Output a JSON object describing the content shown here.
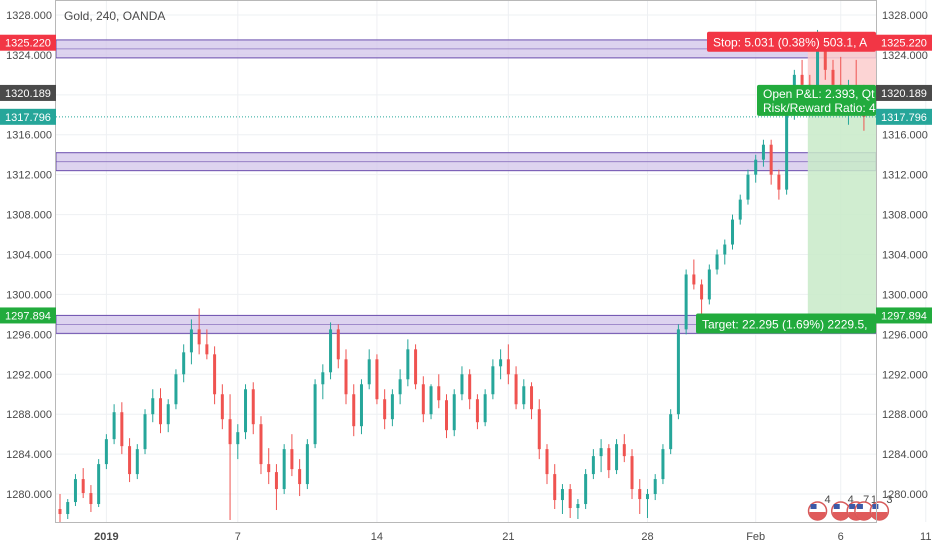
{
  "symbol_title": "Gold, 240, OANDA",
  "colors": {
    "up": "#26a69a",
    "down": "#ef5350",
    "zone_fill": "#d1c4e9",
    "zone_stroke": "#6a4cad",
    "stop_fill": "#fbcdcd",
    "target_fill": "#c8eac8",
    "stop_label": "#f23645",
    "target_label": "#22ab3d",
    "entry_tag": "#4a4a4a",
    "price_line": "#26a69a"
  },
  "chart_data": {
    "type": "candlestick",
    "title": "Gold, 240, OANDA",
    "ylim": [
      1277.2,
      1329.5
    ],
    "yticks": [
      1280,
      1284,
      1288,
      1292,
      1296,
      1300,
      1304,
      1308,
      1312,
      1316,
      1320,
      1324,
      1328
    ],
    "ytick_labels": [
      "1280.000",
      "1284.000",
      "1288.000",
      "1292.000",
      "1296.000",
      "1300.000",
      "1304.000",
      "1308.000",
      "1312.000",
      "1316.000",
      "1320.000",
      "1324.000",
      "1328.000"
    ],
    "xticks": [
      {
        "label": "2019",
        "bar": 6,
        "bold": true
      },
      {
        "label": "7",
        "bar": 23
      },
      {
        "label": "14",
        "bar": 41
      },
      {
        "label": "21",
        "bar": 58
      },
      {
        "label": "28",
        "bar": 76
      },
      {
        "label": "Feb",
        "bar": 90
      },
      {
        "label": "6",
        "bar": 101
      },
      {
        "label": "11",
        "bar": 112
      }
    ],
    "grid": true,
    "candles": [
      [
        1278.5,
        1280.0,
        1277.2,
        1278.0
      ],
      [
        1278.0,
        1279.5,
        1277.5,
        1279.2
      ],
      [
        1279.2,
        1282.0,
        1278.8,
        1281.5
      ],
      [
        1281.5,
        1282.6,
        1279.6,
        1280.1
      ],
      [
        1280.1,
        1280.9,
        1278.2,
        1279.0
      ],
      [
        1279.0,
        1283.5,
        1278.7,
        1283.0
      ],
      [
        1283.0,
        1286.0,
        1282.5,
        1285.5
      ],
      [
        1285.5,
        1289.0,
        1285.0,
        1288.2
      ],
      [
        1288.2,
        1289.2,
        1284.0,
        1284.8
      ],
      [
        1284.8,
        1285.6,
        1281.2,
        1282.0
      ],
      [
        1282.0,
        1285.0,
        1281.5,
        1284.5
      ],
      [
        1284.5,
        1288.5,
        1284.0,
        1288.0
      ],
      [
        1288.0,
        1290.5,
        1287.2,
        1289.6
      ],
      [
        1289.6,
        1290.6,
        1286.1,
        1287.0
      ],
      [
        1287.0,
        1289.5,
        1286.2,
        1289.0
      ],
      [
        1289.0,
        1292.5,
        1288.5,
        1292.0
      ],
      [
        1292.0,
        1295.0,
        1291.2,
        1294.2
      ],
      [
        1294.2,
        1297.5,
        1293.0,
        1296.5
      ],
      [
        1296.5,
        1298.6,
        1294.0,
        1295.0
      ],
      [
        1295.0,
        1296.5,
        1293.5,
        1294.0
      ],
      [
        1294.0,
        1294.8,
        1289.0,
        1290.0
      ],
      [
        1290.0,
        1291.0,
        1286.5,
        1287.5
      ],
      [
        1287.5,
        1290.0,
        1277.4,
        1285.0
      ],
      [
        1285.0,
        1287.0,
        1283.5,
        1286.2
      ],
      [
        1286.2,
        1291.0,
        1285.5,
        1290.5
      ],
      [
        1290.5,
        1291.2,
        1286.0,
        1287.0
      ],
      [
        1287.0,
        1287.8,
        1282.0,
        1283.0
      ],
      [
        1283.0,
        1284.6,
        1281.0,
        1282.2
      ],
      [
        1282.2,
        1283.0,
        1278.4,
        1280.5
      ],
      [
        1280.5,
        1285.0,
        1280.0,
        1284.5
      ],
      [
        1284.5,
        1286.0,
        1281.8,
        1282.5
      ],
      [
        1282.5,
        1283.5,
        1279.8,
        1281.0
      ],
      [
        1281.0,
        1285.5,
        1280.5,
        1285.0
      ],
      [
        1285.0,
        1291.5,
        1284.6,
        1291.0
      ],
      [
        1291.0,
        1293.0,
        1289.5,
        1292.2
      ],
      [
        1292.2,
        1297.2,
        1291.5,
        1296.5
      ],
      [
        1296.5,
        1297.0,
        1292.6,
        1293.5
      ],
      [
        1293.5,
        1294.5,
        1289.0,
        1290.0
      ],
      [
        1290.0,
        1291.0,
        1285.8,
        1286.8
      ],
      [
        1286.8,
        1291.5,
        1286.0,
        1291.0
      ],
      [
        1291.0,
        1294.5,
        1290.5,
        1293.5
      ],
      [
        1293.5,
        1294.0,
        1289.0,
        1289.5
      ],
      [
        1289.5,
        1290.5,
        1286.5,
        1287.5
      ],
      [
        1287.5,
        1290.5,
        1286.8,
        1290.0
      ],
      [
        1290.0,
        1292.5,
        1289.0,
        1291.5
      ],
      [
        1291.5,
        1295.5,
        1290.8,
        1294.5
      ],
      [
        1294.5,
        1295.0,
        1290.5,
        1291.0
      ],
      [
        1291.0,
        1291.8,
        1287.2,
        1288.0
      ],
      [
        1288.0,
        1291.0,
        1287.5,
        1290.8
      ],
      [
        1290.8,
        1292.0,
        1288.6,
        1289.4
      ],
      [
        1289.4,
        1290.0,
        1285.6,
        1286.4
      ],
      [
        1286.4,
        1290.5,
        1285.8,
        1290.0
      ],
      [
        1290.0,
        1292.8,
        1289.4,
        1292.0
      ],
      [
        1292.0,
        1292.5,
        1288.5,
        1289.5
      ],
      [
        1289.5,
        1290.0,
        1286.5,
        1287.2
      ],
      [
        1287.2,
        1290.5,
        1286.8,
        1290.0
      ],
      [
        1290.0,
        1293.5,
        1289.5,
        1292.8
      ],
      [
        1292.8,
        1294.5,
        1291.5,
        1293.5
      ],
      [
        1293.5,
        1295.0,
        1291.0,
        1292.0
      ],
      [
        1292.0,
        1292.8,
        1288.5,
        1289.0
      ],
      [
        1289.0,
        1291.5,
        1288.5,
        1290.8
      ],
      [
        1290.8,
        1291.2,
        1287.5,
        1288.5
      ],
      [
        1288.5,
        1289.5,
        1283.5,
        1284.5
      ],
      [
        1284.5,
        1285.0,
        1281.0,
        1282.0
      ],
      [
        1282.0,
        1283.0,
        1278.5,
        1279.4
      ],
      [
        1279.4,
        1281.0,
        1278.0,
        1280.5
      ],
      [
        1280.5,
        1281.0,
        1277.6,
        1278.6
      ],
      [
        1278.6,
        1279.5,
        1277.5,
        1279.0
      ],
      [
        1279.0,
        1282.5,
        1278.5,
        1282.0
      ],
      [
        1282.0,
        1284.5,
        1281.5,
        1283.8
      ],
      [
        1283.8,
        1285.5,
        1282.2,
        1284.6
      ],
      [
        1284.6,
        1285.0,
        1281.6,
        1282.4
      ],
      [
        1282.4,
        1285.5,
        1282.0,
        1285.0
      ],
      [
        1285.0,
        1286.0,
        1283.2,
        1283.8
      ],
      [
        1283.8,
        1284.5,
        1279.5,
        1280.5
      ],
      [
        1280.5,
        1281.5,
        1278.0,
        1279.5
      ],
      [
        1279.5,
        1280.5,
        1277.6,
        1280.0
      ],
      [
        1280.0,
        1282.0,
        1279.4,
        1281.5
      ],
      [
        1281.5,
        1285.0,
        1281.0,
        1284.5
      ],
      [
        1284.5,
        1288.5,
        1284.0,
        1288.0
      ],
      [
        1288.0,
        1297.0,
        1287.5,
        1296.5
      ],
      [
        1296.5,
        1302.5,
        1296.0,
        1302.0
      ],
      [
        1302.0,
        1303.5,
        1300.5,
        1301.0
      ],
      [
        1301.0,
        1301.5,
        1298.0,
        1299.5
      ],
      [
        1299.5,
        1303.0,
        1299.0,
        1302.5
      ],
      [
        1302.5,
        1304.5,
        1302.0,
        1304.0
      ],
      [
        1304.0,
        1305.5,
        1303.0,
        1305.0
      ],
      [
        1305.0,
        1308.0,
        1304.5,
        1307.5
      ],
      [
        1307.5,
        1310.0,
        1307.0,
        1309.5
      ],
      [
        1309.5,
        1312.5,
        1309.0,
        1312.0
      ],
      [
        1312.0,
        1314.0,
        1311.2,
        1313.5
      ],
      [
        1313.5,
        1315.5,
        1312.8,
        1315.0
      ],
      [
        1315.0,
        1315.5,
        1311.0,
        1312.0
      ],
      [
        1312.0,
        1312.5,
        1309.5,
        1310.5
      ],
      [
        1310.5,
        1318.5,
        1310.0,
        1318.0
      ],
      [
        1318.0,
        1322.5,
        1317.5,
        1322.0
      ],
      [
        1322.0,
        1323.5,
        1320.5,
        1321.0
      ],
      [
        1321.0,
        1322.0,
        1318.5,
        1319.5
      ],
      [
        1319.5,
        1326.5,
        1319.0,
        1325.5
      ],
      [
        1325.5,
        1326.0,
        1321.5,
        1322.5
      ],
      [
        1322.5,
        1323.5,
        1320.0,
        1321.0
      ],
      [
        1321.0,
        1323.8,
        1318.2,
        1319.2
      ],
      [
        1319.2,
        1321.5,
        1317.0,
        1320.8
      ],
      [
        1320.8,
        1323.5,
        1318.0,
        1318.5
      ],
      [
        1318.5,
        1321.0,
        1316.4,
        1317.8
      ]
    ],
    "zones": [
      {
        "label": "1325.220",
        "top": 1325.5,
        "bottom": 1323.7
      },
      {
        "label": "",
        "top": 1314.2,
        "bottom": 1312.4
      },
      {
        "label": "1297.894",
        "top": 1297.9,
        "bottom": 1296.1
      }
    ],
    "position": {
      "stop": 1325.22,
      "entry": 1320.189,
      "target": 1297.894,
      "current": 1317.796,
      "start_bar": 97
    },
    "price_tags": {
      "stop": "1325.220",
      "entry": "1320.189",
      "current": "1317.796",
      "target": "1297.894"
    },
    "stop_text": "Stop: 5.031 (0.38%) 503.1, A",
    "target_text": "Target: 22.295 (1.69%) 2229.5,",
    "pnl_text": "Open P&L: 2.393, Qt",
    "rr_text": "Risk/Reward Ratio: 4",
    "event_badges": [
      {
        "bar": 98,
        "label": "4"
      },
      {
        "bar": 101,
        "label": "4"
      },
      {
        "bar": 103,
        "label": "7"
      },
      {
        "bar": 104,
        "label": "1"
      },
      {
        "bar": 106,
        "label": "3"
      }
    ]
  }
}
